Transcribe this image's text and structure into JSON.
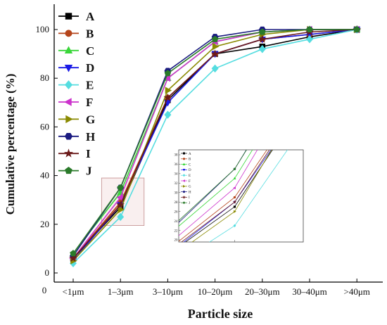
{
  "chart_data": {
    "type": "line",
    "title": "",
    "xlabel": "Particle size",
    "ylabel": "Cumulative percentage (%)",
    "x_origin_label": "0",
    "categories": [
      "<1μm",
      "1–3μm",
      "3–10μm",
      "10–20μm",
      "20–30μm",
      "30–40μm",
      ">40μm"
    ],
    "ylim": [
      0,
      110
    ],
    "yticks": [
      0,
      20,
      40,
      60,
      80,
      100
    ],
    "legend_position": "top-left",
    "series": [
      {
        "name": "A",
        "color": "#000000",
        "marker": "square",
        "values": [
          6,
          27,
          71,
          90,
          93,
          97,
          100
        ]
      },
      {
        "name": "B",
        "color": "#b5451b",
        "marker": "circle",
        "values": [
          6,
          29,
          72,
          90,
          96,
          98,
          100
        ]
      },
      {
        "name": "C",
        "color": "#39d639",
        "marker": "triangle-up",
        "values": [
          8,
          33,
          80,
          95,
          99,
          100,
          100
        ]
      },
      {
        "name": "D",
        "color": "#1a1ae6",
        "marker": "triangle-down",
        "values": [
          5,
          28,
          70,
          90,
          96,
          98,
          100
        ]
      },
      {
        "name": "E",
        "color": "#55dde0",
        "marker": "diamond",
        "values": [
          4,
          23,
          65,
          84,
          92,
          96,
          100
        ]
      },
      {
        "name": "F",
        "color": "#cc33cc",
        "marker": "triangle-left",
        "values": [
          6,
          31,
          80,
          95,
          99,
          100,
          100
        ]
      },
      {
        "name": "G",
        "color": "#8a8a00",
        "marker": "triangle-right",
        "values": [
          5,
          26,
          75,
          93,
          98,
          100,
          100
        ]
      },
      {
        "name": "H",
        "color": "#1a1a80",
        "marker": "hexagon",
        "values": [
          7,
          35,
          83,
          97,
          100,
          100,
          100
        ]
      },
      {
        "name": "I",
        "color": "#6b1a1a",
        "marker": "star",
        "values": [
          6,
          28,
          72,
          90,
          96,
          99,
          100
        ]
      },
      {
        "name": "J",
        "color": "#2a7a2a",
        "marker": "pentagon",
        "values": [
          8,
          35,
          82,
          96,
          99,
          100,
          100
        ]
      }
    ],
    "zoom_box": {
      "x_range": [
        0.6,
        1.5
      ],
      "y_range": [
        19.5,
        39
      ]
    },
    "inset": {
      "ylim": [
        20,
        38
      ],
      "yticks": [
        20,
        22,
        24,
        26,
        28,
        30,
        32,
        34,
        36,
        38
      ]
    }
  }
}
